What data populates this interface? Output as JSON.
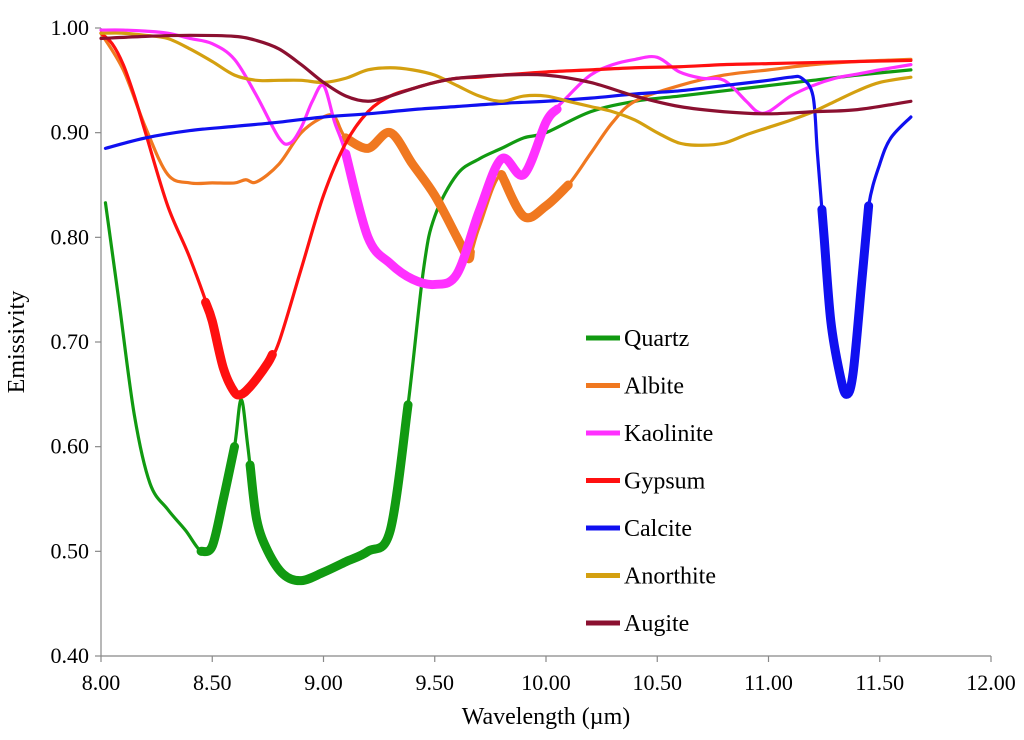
{
  "chart_data": {
    "type": "line",
    "title": "",
    "xlabel": "Wavelength (µm)",
    "ylabel": "Emissivity",
    "xlim": [
      8.0,
      12.0
    ],
    "ylim": [
      0.4,
      1.0
    ],
    "x_ticks": [
      8.0,
      8.5,
      9.0,
      9.5,
      10.0,
      10.5,
      11.0,
      11.5,
      12.0
    ],
    "y_ticks": [
      0.4,
      0.5,
      0.6,
      0.7,
      0.8,
      0.9,
      1.0
    ],
    "x_tick_labels": [
      "8.00",
      "8.50",
      "9.00",
      "9.50",
      "10.00",
      "10.50",
      "11.00",
      "11.50",
      "12.00"
    ],
    "y_tick_labels": [
      "0.40",
      "0.50",
      "0.60",
      "0.70",
      "0.80",
      "0.90",
      "1.00"
    ],
    "grid": false,
    "legend_position": "center-right",
    "series": [
      {
        "name": "Quartz",
        "color": "#119a11",
        "x": [
          8.02,
          8.08,
          8.15,
          8.22,
          8.3,
          8.38,
          8.45,
          8.5,
          8.55,
          8.6,
          8.63,
          8.66,
          8.7,
          8.75,
          8.82,
          8.9,
          9.0,
          9.1,
          9.2,
          9.3,
          9.38,
          9.45,
          9.5,
          9.6,
          9.7,
          9.8,
          9.9,
          10.0,
          10.2,
          10.4,
          10.6,
          10.8,
          11.0,
          11.2,
          11.4,
          11.64
        ],
        "y": [
          0.833,
          0.74,
          0.63,
          0.565,
          0.54,
          0.52,
          0.5,
          0.505,
          0.55,
          0.6,
          0.645,
          0.6,
          0.53,
          0.5,
          0.478,
          0.472,
          0.48,
          0.49,
          0.5,
          0.52,
          0.64,
          0.77,
          0.82,
          0.86,
          0.875,
          0.885,
          0.895,
          0.9,
          0.92,
          0.93,
          0.935,
          0.94,
          0.945,
          0.95,
          0.955,
          0.96
        ],
        "highlight": [
          [
            8.45,
            8.6
          ],
          [
            8.67,
            9.38
          ]
        ]
      },
      {
        "name": "Albite",
        "color": "#f07820",
        "x": [
          8.0,
          8.1,
          8.2,
          8.3,
          8.4,
          8.5,
          8.6,
          8.65,
          8.7,
          8.8,
          8.9,
          9.0,
          9.05,
          9.1,
          9.2,
          9.3,
          9.4,
          9.5,
          9.6,
          9.65,
          9.7,
          9.8,
          9.9,
          10.0,
          10.1,
          10.2,
          10.3,
          10.4,
          10.6,
          10.8,
          11.0,
          11.2,
          11.4,
          11.64
        ],
        "y": [
          0.995,
          0.96,
          0.905,
          0.86,
          0.852,
          0.852,
          0.852,
          0.855,
          0.853,
          0.87,
          0.9,
          0.915,
          0.915,
          0.895,
          0.885,
          0.9,
          0.87,
          0.84,
          0.8,
          0.78,
          0.81,
          0.86,
          0.82,
          0.83,
          0.85,
          0.88,
          0.91,
          0.93,
          0.945,
          0.955,
          0.96,
          0.965,
          0.968,
          0.97
        ],
        "highlight": [
          [
            9.1,
            9.66
          ],
          [
            9.8,
            10.1
          ]
        ]
      },
      {
        "name": "Kaolinite",
        "color": "#ff30ff",
        "x": [
          8.0,
          8.1,
          8.2,
          8.3,
          8.4,
          8.5,
          8.6,
          8.7,
          8.8,
          8.85,
          8.9,
          8.95,
          9.0,
          9.05,
          9.1,
          9.2,
          9.3,
          9.4,
          9.5,
          9.6,
          9.7,
          9.8,
          9.9,
          10.0,
          10.1,
          10.2,
          10.3,
          10.4,
          10.5,
          10.6,
          10.7,
          10.8,
          10.9,
          10.95,
          11.0,
          11.1,
          11.2,
          11.3,
          11.4,
          11.5,
          11.64
        ],
        "y": [
          0.998,
          0.998,
          0.997,
          0.995,
          0.99,
          0.985,
          0.97,
          0.935,
          0.895,
          0.89,
          0.905,
          0.93,
          0.945,
          0.91,
          0.88,
          0.8,
          0.775,
          0.76,
          0.755,
          0.765,
          0.825,
          0.875,
          0.86,
          0.91,
          0.935,
          0.955,
          0.965,
          0.97,
          0.972,
          0.958,
          0.952,
          0.95,
          0.93,
          0.92,
          0.92,
          0.935,
          0.945,
          0.952,
          0.956,
          0.96,
          0.965
        ],
        "highlight": [
          [
            9.1,
            10.05
          ]
        ]
      },
      {
        "name": "Gypsum",
        "color": "#ff1010",
        "x": [
          8.0,
          8.05,
          8.1,
          8.15,
          8.2,
          8.3,
          8.4,
          8.5,
          8.55,
          8.6,
          8.63,
          8.66,
          8.7,
          8.75,
          8.8,
          8.9,
          9.0,
          9.1,
          9.2,
          9.3,
          9.4,
          9.5,
          9.6,
          9.7,
          9.8,
          10.0,
          10.2,
          10.4,
          10.6,
          10.8,
          11.0,
          11.2,
          11.4,
          11.64
        ],
        "y": [
          0.995,
          0.985,
          0.965,
          0.935,
          0.9,
          0.83,
          0.78,
          0.72,
          0.675,
          0.652,
          0.65,
          0.655,
          0.665,
          0.68,
          0.7,
          0.77,
          0.84,
          0.89,
          0.92,
          0.935,
          0.942,
          0.948,
          0.952,
          0.953,
          0.955,
          0.958,
          0.96,
          0.962,
          0.963,
          0.965,
          0.966,
          0.967,
          0.968,
          0.969
        ],
        "highlight": [
          [
            8.47,
            8.77
          ]
        ]
      },
      {
        "name": "Calcite",
        "color": "#1010f0",
        "x": [
          8.02,
          8.2,
          8.4,
          8.6,
          8.8,
          9.0,
          9.2,
          9.4,
          9.6,
          9.8,
          10.0,
          10.2,
          10.4,
          10.6,
          10.8,
          11.0,
          11.1,
          11.15,
          11.2,
          11.22,
          11.25,
          11.28,
          11.32,
          11.35,
          11.38,
          11.42,
          11.45,
          11.5,
          11.55,
          11.64
        ],
        "y": [
          0.885,
          0.895,
          0.902,
          0.906,
          0.91,
          0.915,
          0.918,
          0.922,
          0.925,
          0.928,
          0.93,
          0.933,
          0.937,
          0.94,
          0.945,
          0.95,
          0.953,
          0.952,
          0.935,
          0.88,
          0.8,
          0.72,
          0.67,
          0.65,
          0.67,
          0.76,
          0.83,
          0.87,
          0.895,
          0.915
        ],
        "highlight": [
          [
            11.24,
            11.45
          ]
        ]
      },
      {
        "name": "Anorthite",
        "color": "#d4a010",
        "x": [
          8.0,
          8.1,
          8.2,
          8.3,
          8.4,
          8.5,
          8.6,
          8.7,
          8.8,
          8.9,
          9.0,
          9.1,
          9.2,
          9.3,
          9.4,
          9.5,
          9.6,
          9.7,
          9.8,
          9.9,
          10.0,
          10.1,
          10.2,
          10.3,
          10.4,
          10.5,
          10.6,
          10.7,
          10.8,
          10.9,
          11.0,
          11.1,
          11.2,
          11.3,
          11.4,
          11.5,
          11.64
        ],
        "y": [
          0.995,
          0.995,
          0.993,
          0.99,
          0.98,
          0.968,
          0.955,
          0.95,
          0.95,
          0.95,
          0.948,
          0.952,
          0.96,
          0.962,
          0.96,
          0.955,
          0.945,
          0.935,
          0.93,
          0.935,
          0.935,
          0.93,
          0.925,
          0.92,
          0.912,
          0.9,
          0.89,
          0.888,
          0.89,
          0.898,
          0.905,
          0.912,
          0.92,
          0.93,
          0.94,
          0.948,
          0.953
        ],
        "highlight": []
      },
      {
        "name": "Augite",
        "color": "#8b1030",
        "x": [
          8.0,
          8.2,
          8.4,
          8.6,
          8.7,
          8.8,
          8.9,
          9.0,
          9.1,
          9.2,
          9.3,
          9.4,
          9.5,
          9.6,
          9.8,
          10.0,
          10.2,
          10.4,
          10.6,
          10.8,
          11.0,
          11.2,
          11.4,
          11.64
        ],
        "y": [
          0.99,
          0.992,
          0.993,
          0.992,
          0.988,
          0.98,
          0.965,
          0.948,
          0.935,
          0.93,
          0.935,
          0.942,
          0.948,
          0.952,
          0.955,
          0.955,
          0.948,
          0.935,
          0.925,
          0.92,
          0.918,
          0.92,
          0.922,
          0.93
        ],
        "highlight": []
      }
    ]
  }
}
